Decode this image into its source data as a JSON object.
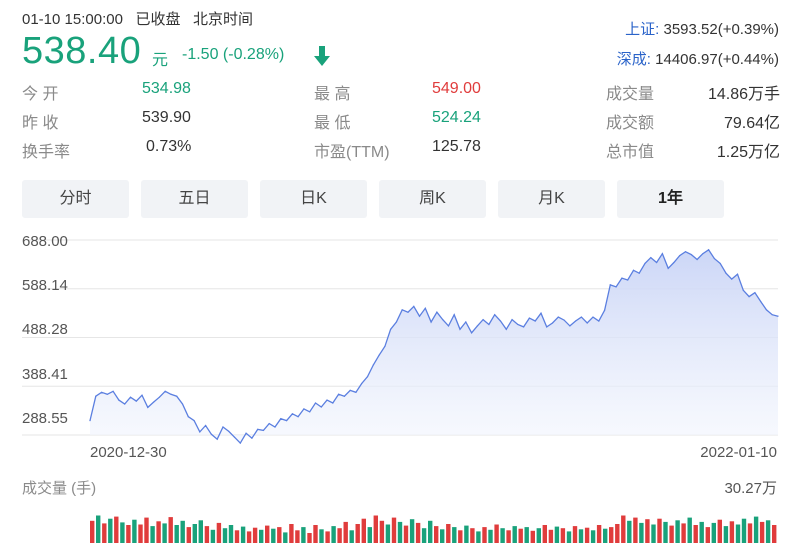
{
  "header": {
    "datetime": "01-10 15:00:00",
    "status": "已收盘",
    "timezone": "北京时间",
    "price": "538.40",
    "unit": "元",
    "change": "-1.50 (-0.28%)"
  },
  "indices": [
    {
      "label": "上证:",
      "value": "3593.52(+0.39%)"
    },
    {
      "label": "深成:",
      "value": "14406.97(+0.44%)"
    }
  ],
  "stats": [
    {
      "key": "今 开",
      "value": "534.98",
      "tone": "green"
    },
    {
      "key": "最 高",
      "value": "549.00",
      "tone": "red"
    },
    {
      "key": "成交量",
      "value": "14.86万手",
      "tone": "normal"
    },
    {
      "key": "昨 收",
      "value": "539.90",
      "tone": "normal"
    },
    {
      "key": "最 低",
      "value": "524.24",
      "tone": "green"
    },
    {
      "key": "成交额",
      "value": "79.64亿",
      "tone": "normal"
    },
    {
      "key": "换手率",
      "value": "0.73%",
      "tone": "normal"
    },
    {
      "key": "市盈(TTM)",
      "value": "125.78",
      "tone": "normal"
    },
    {
      "key": "总市值",
      "value": "1.25万亿",
      "tone": "normal"
    }
  ],
  "tabs": [
    {
      "label": "分时",
      "active": false
    },
    {
      "label": "五日",
      "active": false
    },
    {
      "label": "日K",
      "active": false
    },
    {
      "label": "周K",
      "active": false
    },
    {
      "label": "月K",
      "active": false
    },
    {
      "label": "1年",
      "active": true
    }
  ],
  "colors": {
    "up": "#e03c3c",
    "down": "#19a27b",
    "line": "#5b7fe0",
    "area": "#dfe6fb"
  },
  "chart_data": {
    "type": "area",
    "title": "",
    "y_ticks": [
      "688.00",
      "588.14",
      "488.28",
      "388.41",
      "288.55"
    ],
    "ylim": [
      288.55,
      688.0
    ],
    "x_labels": [
      "2020-12-30",
      "2022-01-10"
    ],
    "grid": true,
    "series": [
      {
        "values": [
          318,
          368,
          376,
          372,
          378,
          360,
          352,
          366,
          358,
          370,
          345,
          356,
          366,
          378,
          372,
          368,
          352,
          326,
          318,
          295,
          308,
          290,
          280,
          305,
          296,
          284,
          272,
          292,
          282,
          300,
          298,
          312,
          305,
          322,
          318,
          332,
          326,
          342,
          336,
          354,
          346,
          360,
          354,
          372,
          368,
          380,
          376,
          394,
          408,
          432,
          452,
          470,
          505,
          520,
          545,
          540,
          552,
          532,
          548,
          520,
          540,
          525,
          512,
          535,
          505,
          520,
          498,
          512,
          525,
          515,
          535,
          522,
          505,
          525,
          515,
          510,
          528,
          522,
          538,
          510,
          518,
          530,
          524,
          512,
          522,
          530,
          518,
          530,
          522,
          544,
          596,
          592,
          610,
          606,
          626,
          620,
          640,
          652,
          642,
          660,
          630,
          642,
          656,
          664,
          658,
          648,
          660,
          668,
          650,
          640,
          620,
          608,
          618,
          585,
          572,
          580,
          562,
          545,
          535,
          532
        ]
      }
    ],
    "volume": {
      "label": "成交量 (手)",
      "max_label": "30.27万",
      "max": 302700,
      "bars": [
        {
          "v": 210000,
          "up": true
        },
        {
          "v": 260000,
          "up": false
        },
        {
          "v": 185000,
          "up": true
        },
        {
          "v": 230000,
          "up": false
        },
        {
          "v": 250000,
          "up": true
        },
        {
          "v": 195000,
          "up": false
        },
        {
          "v": 170000,
          "up": true
        },
        {
          "v": 220000,
          "up": false
        },
        {
          "v": 175000,
          "up": true
        },
        {
          "v": 240000,
          "up": true
        },
        {
          "v": 160000,
          "up": false
        },
        {
          "v": 205000,
          "up": true
        },
        {
          "v": 185000,
          "up": false
        },
        {
          "v": 245000,
          "up": true
        },
        {
          "v": 170000,
          "up": false
        },
        {
          "v": 210000,
          "up": false
        },
        {
          "v": 150000,
          "up": true
        },
        {
          "v": 180000,
          "up": false
        },
        {
          "v": 215000,
          "up": false
        },
        {
          "v": 160000,
          "up": true
        },
        {
          "v": 125000,
          "up": false
        },
        {
          "v": 190000,
          "up": true
        },
        {
          "v": 140000,
          "up": false
        },
        {
          "v": 170000,
          "up": false
        },
        {
          "v": 120000,
          "up": true
        },
        {
          "v": 155000,
          "up": false
        },
        {
          "v": 110000,
          "up": true
        },
        {
          "v": 145000,
          "up": true
        },
        {
          "v": 125000,
          "up": false
        },
        {
          "v": 165000,
          "up": true
        },
        {
          "v": 135000,
          "up": false
        },
        {
          "v": 150000,
          "up": true
        },
        {
          "v": 100000,
          "up": false
        },
        {
          "v": 180000,
          "up": true
        },
        {
          "v": 120000,
          "up": true
        },
        {
          "v": 150000,
          "up": false
        },
        {
          "v": 95000,
          "up": true
        },
        {
          "v": 170000,
          "up": true
        },
        {
          "v": 130000,
          "up": false
        },
        {
          "v": 110000,
          "up": true
        },
        {
          "v": 160000,
          "up": false
        },
        {
          "v": 140000,
          "up": true
        },
        {
          "v": 200000,
          "up": true
        },
        {
          "v": 120000,
          "up": false
        },
        {
          "v": 180000,
          "up": true
        },
        {
          "v": 230000,
          "up": true
        },
        {
          "v": 150000,
          "up": false
        },
        {
          "v": 260000,
          "up": true
        },
        {
          "v": 210000,
          "up": true
        },
        {
          "v": 175000,
          "up": false
        },
        {
          "v": 240000,
          "up": true
        },
        {
          "v": 200000,
          "up": false
        },
        {
          "v": 165000,
          "up": true
        },
        {
          "v": 225000,
          "up": false
        },
        {
          "v": 190000,
          "up": true
        },
        {
          "v": 140000,
          "up": false
        },
        {
          "v": 210000,
          "up": false
        },
        {
          "v": 160000,
          "up": true
        },
        {
          "v": 130000,
          "up": false
        },
        {
          "v": 180000,
          "up": true
        },
        {
          "v": 150000,
          "up": false
        },
        {
          "v": 120000,
          "up": true
        },
        {
          "v": 165000,
          "up": false
        },
        {
          "v": 140000,
          "up": true
        },
        {
          "v": 110000,
          "up": false
        },
        {
          "v": 150000,
          "up": true
        },
        {
          "v": 125000,
          "up": false
        },
        {
          "v": 175000,
          "up": true
        },
        {
          "v": 140000,
          "up": false
        },
        {
          "v": 120000,
          "up": true
        },
        {
          "v": 160000,
          "up": false
        },
        {
          "v": 135000,
          "up": true
        },
        {
          "v": 150000,
          "up": false
        },
        {
          "v": 115000,
          "up": true
        },
        {
          "v": 140000,
          "up": false
        },
        {
          "v": 170000,
          "up": true
        },
        {
          "v": 125000,
          "up": true
        },
        {
          "v": 155000,
          "up": false
        },
        {
          "v": 140000,
          "up": true
        },
        {
          "v": 110000,
          "up": false
        },
        {
          "v": 160000,
          "up": true
        },
        {
          "v": 130000,
          "up": false
        },
        {
          "v": 145000,
          "up": true
        },
        {
          "v": 120000,
          "up": false
        },
        {
          "v": 170000,
          "up": true
        },
        {
          "v": 135000,
          "up": false
        },
        {
          "v": 150000,
          "up": true
        },
        {
          "v": 180000,
          "up": true
        },
        {
          "v": 260000,
          "up": true
        },
        {
          "v": 210000,
          "up": false
        },
        {
          "v": 240000,
          "up": true
        },
        {
          "v": 190000,
          "up": false
        },
        {
          "v": 225000,
          "up": true
        },
        {
          "v": 175000,
          "up": false
        },
        {
          "v": 230000,
          "up": true
        },
        {
          "v": 200000,
          "up": false
        },
        {
          "v": 165000,
          "up": true
        },
        {
          "v": 215000,
          "up": false
        },
        {
          "v": 185000,
          "up": true
        },
        {
          "v": 240000,
          "up": false
        },
        {
          "v": 170000,
          "up": true
        },
        {
          "v": 200000,
          "up": false
        },
        {
          "v": 150000,
          "up": true
        },
        {
          "v": 190000,
          "up": false
        },
        {
          "v": 220000,
          "up": true
        },
        {
          "v": 160000,
          "up": false
        },
        {
          "v": 205000,
          "up": true
        },
        {
          "v": 175000,
          "up": false
        },
        {
          "v": 230000,
          "up": false
        },
        {
          "v": 185000,
          "up": true
        },
        {
          "v": 250000,
          "up": false
        },
        {
          "v": 200000,
          "up": true
        },
        {
          "v": 215000,
          "up": false
        },
        {
          "v": 170000,
          "up": true
        }
      ]
    }
  }
}
